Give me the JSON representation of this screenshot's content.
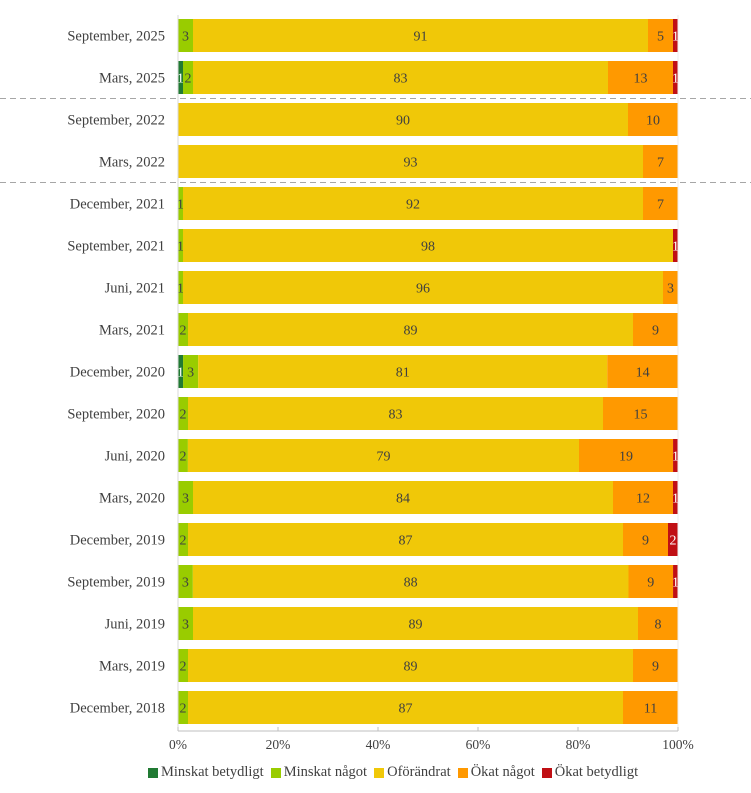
{
  "chart_data": {
    "type": "bar",
    "orientation": "horizontal",
    "stacked": "percent",
    "title": "",
    "xlabel": "",
    "ylabel": "",
    "xlim": [
      0,
      100
    ],
    "x_ticks": [
      "0%",
      "20%",
      "40%",
      "60%",
      "80%",
      "100%"
    ],
    "grid": false,
    "legend_position": "bottom",
    "categories": [
      "September, 2025",
      "Mars, 2025",
      "September, 2022",
      "Mars, 2022",
      "December, 2021",
      "September, 2021",
      "Juni, 2021",
      "Mars, 2021",
      "December, 2020",
      "September, 2020",
      "Juni, 2020",
      "Mars, 2020",
      "December, 2019",
      "September, 2019",
      "Juni, 2019",
      "Mars, 2019",
      "December, 2018"
    ],
    "separators_after": [
      "Mars, 2025",
      "Mars, 2022"
    ],
    "series": [
      {
        "name": "Minskat betydligt",
        "color": "#217a33",
        "label_color": "#ffffff",
        "values": [
          0,
          1,
          0,
          0,
          0,
          0,
          0,
          0,
          1,
          0,
          0,
          0,
          0,
          0,
          0,
          0,
          0
        ]
      },
      {
        "name": "Minskat något",
        "color": "#99cc00",
        "label_color": "#404040",
        "values": [
          3,
          2,
          0,
          0,
          1,
          1,
          1,
          2,
          3,
          2,
          2,
          3,
          2,
          3,
          3,
          2,
          2
        ]
      },
      {
        "name": "Oförändrat",
        "color": "#f0c808",
        "label_color": "#404040",
        "values": [
          91,
          83,
          90,
          93,
          92,
          98,
          96,
          89,
          81,
          83,
          79,
          84,
          87,
          88,
          89,
          89,
          87
        ]
      },
      {
        "name": "Ökat något",
        "color": "#ff9900",
        "label_color": "#404040",
        "values": [
          5,
          13,
          10,
          7,
          7,
          0,
          3,
          9,
          14,
          15,
          19,
          12,
          9,
          9,
          8,
          9,
          11
        ]
      },
      {
        "name": "Ökat betydligt",
        "color": "#c00f14",
        "label_color": "#ffffff",
        "values": [
          1,
          1,
          0,
          0,
          0,
          1,
          0,
          0,
          0,
          0,
          1,
          1,
          2,
          1,
          0,
          0,
          0
        ]
      }
    ]
  }
}
